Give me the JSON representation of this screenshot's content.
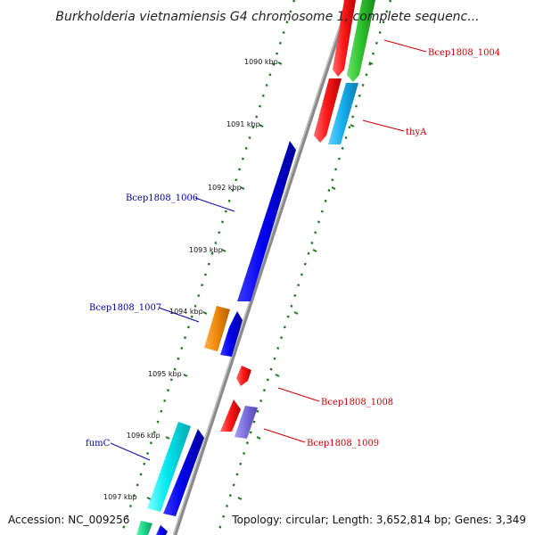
{
  "title": "Burkholderia vietnamiensis G4 chromosome 1, complete sequenc...",
  "footer": {
    "accession": "Accession: NC_009256",
    "topology": "Topology: circular; Length: 3,652,814 bp; Genes: 3,349"
  },
  "kbp_ticks": [
    "1090 kbp",
    "1091 kbp",
    "1092 kbp",
    "1093 kbp",
    "1094 kbp",
    "1095 kbp",
    "1096 kbp",
    "1097 kbp"
  ],
  "colors": {
    "forward_label": "#cc0000",
    "reverse_label": "#0000aa",
    "backbone": "#888888",
    "tick": "#1e7a1e"
  },
  "gene_labels": {
    "bcep1004": "Bcep1808_1004",
    "thyA": "thyA",
    "bcep1006": "Bcep1808_1006",
    "bcep1007": "Bcep1808_1007",
    "bcep1008": "Bcep1808_1008",
    "bcep1009": "Bcep1808_1009",
    "fumC": "fumC"
  }
}
